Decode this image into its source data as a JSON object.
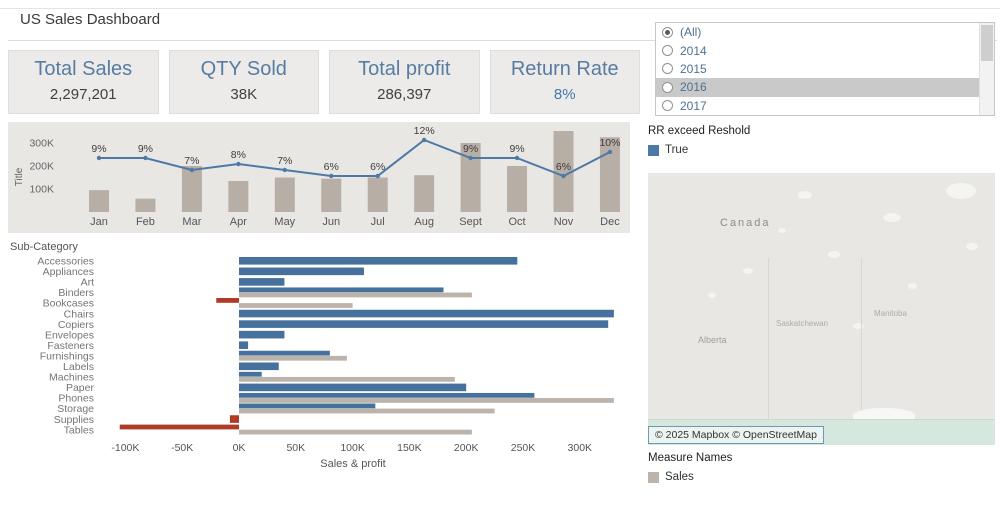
{
  "title": "US Sales Dashboard",
  "kpis": [
    {
      "label": "Total Sales",
      "value": "2,297,201",
      "highlight": false
    },
    {
      "label": "QTY Sold",
      "value": "38K",
      "highlight": false
    },
    {
      "label": "Total profit",
      "value": "286,397",
      "highlight": false
    },
    {
      "label": "Return Rate",
      "value": "8%",
      "highlight": true
    }
  ],
  "year_filter": {
    "options": [
      {
        "label": "(All)",
        "selected": true,
        "highlighted": false
      },
      {
        "label": "2014",
        "selected": false,
        "highlighted": false
      },
      {
        "label": "2015",
        "selected": false,
        "highlighted": false
      },
      {
        "label": "2016",
        "selected": false,
        "highlighted": true
      },
      {
        "label": "2017",
        "selected": false,
        "highlighted": false
      }
    ]
  },
  "rr_legend": {
    "title": "RR exceed Reshold",
    "items": [
      {
        "label": "True",
        "color": "#4e79a7"
      }
    ]
  },
  "measure_legend": {
    "title": "Measure Names",
    "items": [
      {
        "label": "Sales",
        "color": "#bcb3ab"
      }
    ]
  },
  "map": {
    "labels": {
      "canada": "Canada",
      "alberta": "Alberta",
      "saskatchewan": "Saskatchewan",
      "manitoba": "Manitoba"
    },
    "attribution": "© 2025 Mapbox © OpenStreetMap"
  },
  "chart_data": [
    {
      "type": "bar+line",
      "title": "",
      "ylabel": "Title",
      "categories": [
        "Jan",
        "Feb",
        "Mar",
        "Apr",
        "May",
        "Jun",
        "Jul",
        "Aug",
        "Sept",
        "Oct",
        "Nov",
        "Dec"
      ],
      "bar_values_k": [
        95,
        58,
        200,
        135,
        150,
        145,
        150,
        160,
        300,
        200,
        352,
        325
      ],
      "line_percent": [
        9,
        9,
        7,
        8,
        7,
        6,
        6,
        12,
        9,
        9,
        6,
        10
      ],
      "y_ticks": [
        {
          "label": "100K",
          "value_k": 100
        },
        {
          "label": "200K",
          "value_k": 200
        },
        {
          "label": "300K",
          "value_k": 300
        }
      ],
      "ylim_k": [
        0,
        390
      ],
      "grid": false,
      "bar_color": "#b7aea6",
      "line_color": "#4e79a7"
    },
    {
      "type": "bar",
      "orientation": "horizontal",
      "title": "Sub-Category",
      "xlabel": "Sales & profit",
      "xlim_k": [
        -130,
        340
      ],
      "grid": false,
      "x_ticks": [
        {
          "label": "-100K",
          "value_k": -100
        },
        {
          "label": "-50K",
          "value_k": -50
        },
        {
          "label": "0K",
          "value_k": 0
        },
        {
          "label": "50K",
          "value_k": 50
        },
        {
          "label": "100K",
          "value_k": 100
        },
        {
          "label": "150K",
          "value_k": 150
        },
        {
          "label": "200K",
          "value_k": 200
        },
        {
          "label": "250K",
          "value_k": 250
        },
        {
          "label": "300K",
          "value_k": 300
        }
      ],
      "colors": {
        "positive": "#46719c",
        "negative": "#b03a27",
        "sales": "#bcb3ab"
      },
      "rows": [
        {
          "category": "Accessories",
          "primary_k": 245,
          "sales_k": null
        },
        {
          "category": "Appliances",
          "primary_k": 110,
          "sales_k": null
        },
        {
          "category": "Art",
          "primary_k": 40,
          "sales_k": null
        },
        {
          "category": "Binders",
          "primary_k": 180,
          "sales_k": 205
        },
        {
          "category": "Bookcases",
          "primary_k": -20,
          "sales_k": 100
        },
        {
          "category": "Chairs",
          "primary_k": 330,
          "sales_k": null
        },
        {
          "category": "Copiers",
          "primary_k": 325,
          "sales_k": null
        },
        {
          "category": "Envelopes",
          "primary_k": 40,
          "sales_k": null
        },
        {
          "category": "Fasteners",
          "primary_k": 8,
          "sales_k": null
        },
        {
          "category": "Furnishings",
          "primary_k": 80,
          "sales_k": 95
        },
        {
          "category": "Labels",
          "primary_k": 35,
          "sales_k": null
        },
        {
          "category": "Machines",
          "primary_k": 20,
          "sales_k": 190
        },
        {
          "category": "Paper",
          "primary_k": 200,
          "sales_k": null
        },
        {
          "category": "Phones",
          "primary_k": 260,
          "sales_k": 330
        },
        {
          "category": "Storage",
          "primary_k": 120,
          "sales_k": 225
        },
        {
          "category": "Supplies",
          "primary_k": -8,
          "sales_k": null
        },
        {
          "category": "Tables",
          "primary_k": -105,
          "sales_k": 205
        }
      ]
    }
  ]
}
